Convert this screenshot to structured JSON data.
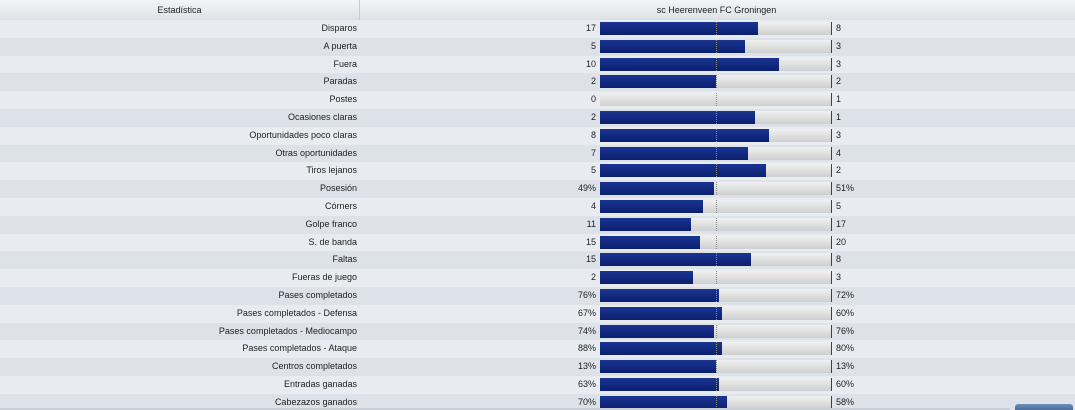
{
  "header": {
    "stat_col": "Estadística",
    "home_team": "sc Heerenveen",
    "away_team": "FC Groningen"
  },
  "stats": [
    {
      "label": "Disparos",
      "home": "17",
      "away": "8",
      "home_fraction": 0.68
    },
    {
      "label": "A puerta",
      "home": "5",
      "away": "3",
      "home_fraction": 0.625
    },
    {
      "label": "Fuera",
      "home": "10",
      "away": "3",
      "home_fraction": 0.77
    },
    {
      "label": "Paradas",
      "home": "2",
      "away": "2",
      "home_fraction": 0.5
    },
    {
      "label": "Postes",
      "home": "0",
      "away": "1",
      "home_fraction": 0.0
    },
    {
      "label": "Ocasiones claras",
      "home": "2",
      "away": "1",
      "home_fraction": 0.667
    },
    {
      "label": "Oportunidades poco claras",
      "home": "8",
      "away": "3",
      "home_fraction": 0.727
    },
    {
      "label": "Otras oportunidades",
      "home": "7",
      "away": "4",
      "home_fraction": 0.636
    },
    {
      "label": "Tiros lejanos",
      "home": "5",
      "away": "2",
      "home_fraction": 0.714
    },
    {
      "label": "Posesión",
      "home": "49%",
      "away": "51%",
      "home_fraction": 0.49
    },
    {
      "label": "Córners",
      "home": "4",
      "away": "5",
      "home_fraction": 0.444
    },
    {
      "label": "Golpe franco",
      "home": "11",
      "away": "17",
      "home_fraction": 0.393
    },
    {
      "label": "S. de banda",
      "home": "15",
      "away": "20",
      "home_fraction": 0.429
    },
    {
      "label": "Faltas",
      "home": "15",
      "away": "8",
      "home_fraction": 0.652
    },
    {
      "label": "Fueras de juego",
      "home": "2",
      "away": "3",
      "home_fraction": 0.4
    },
    {
      "label": "Pases completados",
      "home": "76%",
      "away": "72%",
      "home_fraction": 0.514
    },
    {
      "label": "Pases completados - Defensa",
      "home": "67%",
      "away": "60%",
      "home_fraction": 0.528
    },
    {
      "label": "Pases completados - Mediocampo",
      "home": "74%",
      "away": "76%",
      "home_fraction": 0.493
    },
    {
      "label": "Pases completados - Ataque",
      "home": "88%",
      "away": "80%",
      "home_fraction": 0.524
    },
    {
      "label": "Centros completados",
      "home": "13%",
      "away": "13%",
      "home_fraction": 0.5
    },
    {
      "label": "Entradas ganadas",
      "home": "63%",
      "away": "60%",
      "home_fraction": 0.512
    },
    {
      "label": "Cabezazos ganados",
      "home": "70%",
      "away": "58%",
      "home_fraction": 0.547
    }
  ]
}
